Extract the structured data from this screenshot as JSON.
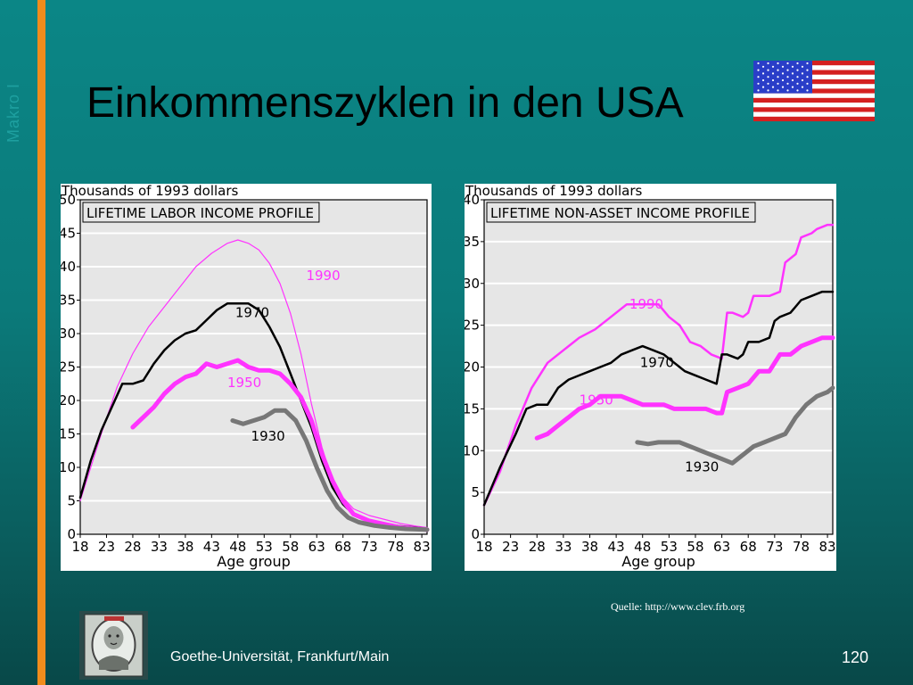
{
  "slide": {
    "side_label": "Makro I",
    "title": "Einkommenszyklen in den USA",
    "source": "Quelle: http://www.clev.frb.org",
    "footer": "Goethe-Universität, Frankfurt/Main",
    "page_number": "120",
    "flag_icon": "us-flag-icon",
    "logo_icon": "university-seal-icon",
    "colors": {
      "background": "#0b7a7a",
      "stripe": "#f08c1c",
      "magenta": "#ff33ff",
      "gray": "#777777",
      "black": "#000000"
    }
  },
  "chart_data": [
    {
      "type": "line",
      "top_label": "Thousands of 1993 dollars",
      "title": "LIFETIME LABOR INCOME PROFILE",
      "xlabel": "Age group",
      "ylim": [
        0,
        50
      ],
      "xlim": [
        18,
        84
      ],
      "x_ticks": [
        "18",
        "23",
        "28",
        "33",
        "38",
        "43",
        "48",
        "53",
        "58",
        "63",
        "68",
        "73",
        "78",
        "83"
      ],
      "y_ticks": [
        "0",
        "5",
        "10",
        "15",
        "20",
        "25",
        "30",
        "35",
        "40",
        "45",
        "50"
      ],
      "grid": true,
      "series": [
        {
          "name": "1990",
          "color": "#ff33ff",
          "width": 1.2,
          "x": [
            18,
            20,
            22,
            25,
            28,
            31,
            34,
            37,
            40,
            43,
            46,
            48,
            50,
            52,
            54,
            56,
            58,
            60,
            62,
            64,
            66,
            68,
            70,
            73,
            76,
            79,
            82,
            84
          ],
          "y": [
            5,
            10,
            15,
            22,
            27,
            31,
            34,
            37,
            40,
            42,
            43.5,
            44,
            43.5,
            42.5,
            40.5,
            37.5,
            33,
            27,
            19.5,
            13,
            8,
            5.5,
            3.8,
            2.8,
            2.2,
            1.6,
            1.2,
            1.0
          ]
        },
        {
          "name": "1970",
          "color": "#000000",
          "width": 2.5,
          "x": [
            18,
            20,
            22,
            24,
            26,
            28,
            30,
            32,
            34,
            36,
            38,
            40,
            42,
            44,
            46,
            48,
            50,
            52,
            54,
            56,
            58,
            60,
            62,
            64,
            66,
            68,
            70,
            73,
            76,
            79,
            82,
            84
          ],
          "y": [
            5.5,
            11,
            15.5,
            19,
            22.5,
            22.5,
            23,
            25.5,
            27.5,
            29,
            30,
            30.5,
            32,
            33.5,
            34.5,
            34.5,
            34.5,
            33.5,
            31,
            28,
            24,
            20,
            16,
            11,
            7,
            4.5,
            3,
            2,
            1.5,
            1.2,
            1,
            0.8
          ]
        },
        {
          "name": "1950",
          "color": "#ff33ff",
          "width": 5,
          "x": [
            28,
            30,
            32,
            34,
            36,
            38,
            40,
            42,
            44,
            46,
            48,
            50,
            52,
            54,
            56,
            58,
            60,
            62,
            64,
            66,
            68,
            70,
            73,
            76,
            79,
            82,
            84
          ],
          "y": [
            16,
            17.5,
            19,
            21,
            22.5,
            23.5,
            24,
            25.5,
            25,
            25.5,
            26,
            25,
            24.5,
            24.5,
            24,
            22.5,
            20.5,
            17,
            12,
            8,
            5,
            3,
            2,
            1.5,
            1,
            0.8,
            0.7
          ]
        },
        {
          "name": "1930",
          "color": "#777777",
          "width": 5,
          "x": [
            47,
            49,
            51,
            53,
            55,
            57,
            59,
            61,
            63,
            65,
            67,
            69,
            71,
            74,
            77,
            80,
            84
          ],
          "y": [
            17,
            16.5,
            17,
            17.5,
            18.5,
            18.5,
            17,
            14,
            10,
            6.5,
            4,
            2.5,
            1.8,
            1.3,
            1,
            0.8,
            0.7
          ]
        }
      ],
      "series_labels": [
        {
          "text": "1990",
          "x": 61,
          "y": 38,
          "color": "#ff33ff"
        },
        {
          "text": "1970",
          "x": 47.5,
          "y": 32.5,
          "color": "#000000"
        },
        {
          "text": "1950",
          "x": 46,
          "y": 22,
          "color": "#ff33ff"
        },
        {
          "text": "1930",
          "x": 50.5,
          "y": 14,
          "color": "#000000"
        }
      ]
    },
    {
      "type": "line",
      "top_label": "Thousands of 1993 dollars",
      "title": "LIFETIME NON-ASSET INCOME PROFILE",
      "xlabel": "Age group",
      "ylim": [
        0,
        40
      ],
      "xlim": [
        18,
        84
      ],
      "x_ticks": [
        "18",
        "23",
        "28",
        "33",
        "38",
        "43",
        "48",
        "53",
        "58",
        "63",
        "68",
        "73",
        "78",
        "83"
      ],
      "y_ticks": [
        "0",
        "5",
        "10",
        "15",
        "20",
        "25",
        "30",
        "35",
        "40"
      ],
      "grid": true,
      "series": [
        {
          "name": "1990",
          "color": "#ff33ff",
          "width": 2.5,
          "x": [
            18,
            21,
            24,
            27,
            30,
            33,
            36,
            39,
            42,
            45,
            48,
            51,
            53,
            55,
            57,
            59,
            61,
            63,
            64,
            65,
            67,
            68,
            69,
            71,
            72,
            74,
            75,
            77,
            78,
            80,
            81,
            83,
            84
          ],
          "y": [
            3.5,
            7.5,
            13,
            17.5,
            20.5,
            22,
            23.5,
            24.5,
            26,
            27.5,
            27.5,
            27.5,
            26,
            25,
            23,
            22.5,
            21.5,
            21,
            26.5,
            26.5,
            26,
            26.5,
            28.5,
            28.5,
            28.5,
            29,
            32.5,
            33.5,
            35.5,
            36,
            36.5,
            37,
            37
          ]
        },
        {
          "name": "1970",
          "color": "#000000",
          "width": 2.5,
          "x": [
            18,
            21,
            24,
            26,
            28,
            30,
            32,
            34,
            36,
            38,
            40,
            42,
            44,
            46,
            48,
            50,
            52,
            54,
            56,
            58,
            60,
            62,
            63,
            64,
            66,
            67,
            68,
            70,
            72,
            73,
            74,
            76,
            78,
            80,
            82,
            84
          ],
          "y": [
            3.5,
            8,
            12,
            15,
            15.5,
            15.5,
            17.5,
            18.5,
            19,
            19.5,
            20,
            20.5,
            21.5,
            22,
            22.5,
            22,
            21.5,
            20.5,
            19.5,
            19,
            18.5,
            18,
            21.5,
            21.5,
            21,
            21.5,
            23,
            23,
            23.5,
            25.5,
            26,
            26.5,
            28,
            28.5,
            29,
            29
          ]
        },
        {
          "name": "1950",
          "color": "#ff33ff",
          "width": 5,
          "x": [
            28,
            30,
            32,
            34,
            36,
            38,
            40,
            42,
            44,
            46,
            48,
            50,
            52,
            54,
            56,
            58,
            60,
            62,
            63,
            64,
            66,
            68,
            70,
            72,
            74,
            76,
            78,
            80,
            82,
            84
          ],
          "y": [
            11.5,
            12,
            13,
            14,
            15,
            15.5,
            16.5,
            16.5,
            16.5,
            16,
            15.5,
            15.5,
            15.5,
            15,
            15,
            15,
            15,
            14.5,
            14.5,
            17,
            17.5,
            18,
            19.5,
            19.5,
            21.5,
            21.5,
            22.5,
            23,
            23.5,
            23.5
          ]
        },
        {
          "name": "1930",
          "color": "#777777",
          "width": 5,
          "x": [
            47,
            49,
            51,
            53,
            55,
            57,
            59,
            61,
            63,
            65,
            67,
            69,
            71,
            73,
            75,
            77,
            79,
            81,
            83,
            84
          ],
          "y": [
            11,
            10.8,
            11,
            11,
            11,
            10.5,
            10,
            9.5,
            9,
            8.5,
            9.5,
            10.5,
            11,
            11.5,
            12,
            14,
            15.5,
            16.5,
            17,
            17.5
          ]
        }
      ],
      "series_labels": [
        {
          "text": "1990",
          "x": 45.5,
          "y": 27,
          "color": "#ff33ff"
        },
        {
          "text": "1970",
          "x": 47.5,
          "y": 20,
          "color": "#000000"
        },
        {
          "text": "1950",
          "x": 36,
          "y": 15.5,
          "color": "#ff33ff"
        },
        {
          "text": "1930",
          "x": 56,
          "y": 7.5,
          "color": "#000000"
        }
      ]
    }
  ]
}
